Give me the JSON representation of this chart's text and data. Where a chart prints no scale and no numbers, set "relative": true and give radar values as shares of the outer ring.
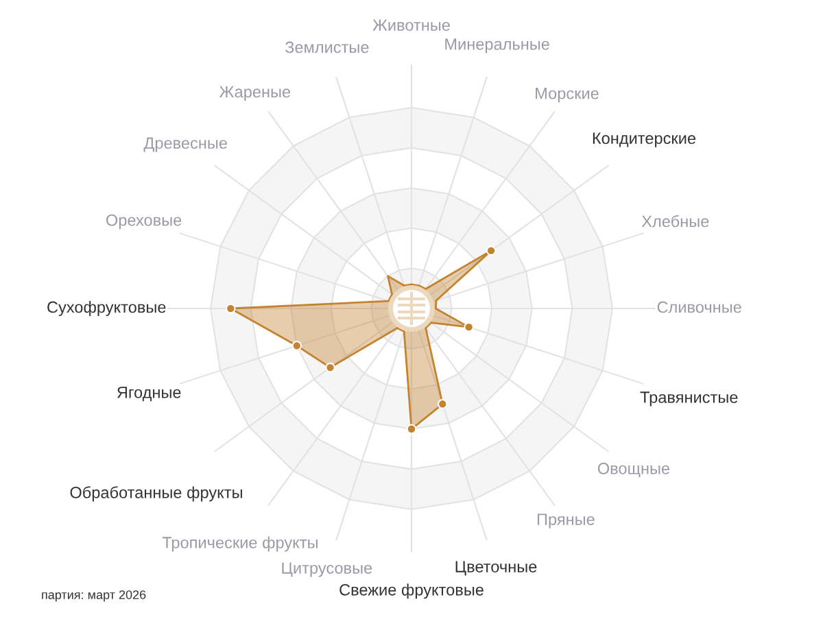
{
  "chart_data": {
    "type": "radar",
    "relative": true,
    "grid": true,
    "marker": "circle",
    "legend": false,
    "categories": [
      "Животные",
      "Минеральные",
      "Морские",
      "Кондитерские",
      "Хлебные",
      "Сливочные",
      "Травянистые",
      "Овощные",
      "Пряные",
      "Цветочные",
      "Свежие фруктовые",
      "Цитрусовые",
      "Тропические фрукты",
      "Обработанные фрукты",
      "Ягодные",
      "Сухофруктовые",
      "Ореховые",
      "Древесные",
      "Жареные",
      "Землистые"
    ],
    "series": [
      {
        "color": "#c4832f",
        "values": [
          0.12,
          0.12,
          0.12,
          0.49,
          0.13,
          0.12,
          0.3,
          0.12,
          0.12,
          0.5,
          0.6,
          0.12,
          0.12,
          0.5,
          0.6,
          0.9,
          0.12,
          0.12,
          0.2,
          0.12
        ],
        "colors": [
          null,
          null,
          null,
          "#c4832f",
          null,
          null,
          "#c4832f",
          null,
          null,
          "#c4832f",
          "#c4832f",
          null,
          null,
          "#c4832f",
          "#c4832f",
          "#c4832f",
          null,
          null,
          null,
          null
        ]
      }
    ],
    "annotations": [
      "партия: март 2026"
    ]
  }
}
